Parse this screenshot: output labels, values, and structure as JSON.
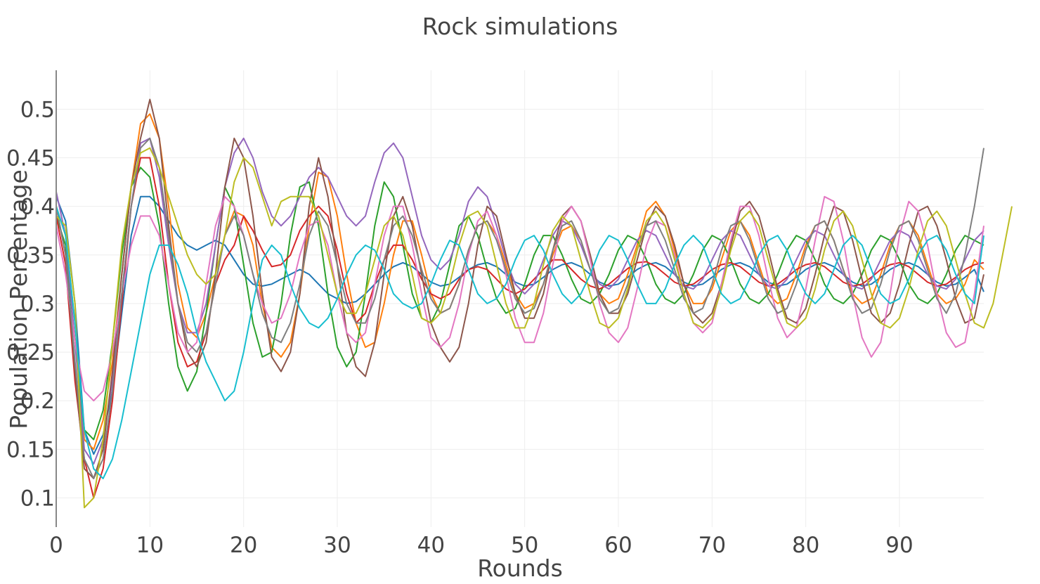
{
  "chart_data": {
    "type": "line",
    "title": "Rock simulations",
    "xlabel": "Rounds",
    "ylabel": "Population Percentage",
    "xlim": [
      0,
      99
    ],
    "ylim": [
      0.07,
      0.54
    ],
    "xticks": [
      0,
      10,
      20,
      30,
      40,
      50,
      60,
      70,
      80,
      90
    ],
    "xtick_labels": [
      "0",
      "10",
      "20",
      "30",
      "40",
      "50",
      "60",
      "70",
      "80",
      "90"
    ],
    "yticks": [
      0.1,
      0.15,
      0.2,
      0.25,
      0.3,
      0.35,
      0.4,
      0.45,
      0.5
    ],
    "ytick_labels": [
      "0.1",
      "0.15",
      "0.2",
      "0.25",
      "0.3",
      "0.35",
      "0.4",
      "0.45",
      "0.5"
    ],
    "grid": true,
    "legend": "none",
    "series": [
      {
        "color": "#1f77b4",
        "values": [
          0.41,
          0.385,
          0.3,
          0.17,
          0.145,
          0.165,
          0.21,
          0.29,
          0.37,
          0.41,
          0.41,
          0.4,
          0.385,
          0.37,
          0.36,
          0.355,
          0.36,
          0.365,
          0.36,
          0.345,
          0.33,
          0.32,
          0.318,
          0.32,
          0.325,
          0.33,
          0.335,
          0.33,
          0.32,
          0.31,
          0.305,
          0.3,
          0.302,
          0.31,
          0.32,
          0.33,
          0.338,
          0.342,
          0.338,
          0.33,
          0.322,
          0.318,
          0.32,
          0.327,
          0.335,
          0.34,
          0.342,
          0.338,
          0.33,
          0.322,
          0.318,
          0.32,
          0.327,
          0.335,
          0.34,
          0.342,
          0.338,
          0.33,
          0.322,
          0.318,
          0.32,
          0.327,
          0.335,
          0.34,
          0.342,
          0.338,
          0.33,
          0.322,
          0.318,
          0.32,
          0.327,
          0.335,
          0.34,
          0.342,
          0.338,
          0.33,
          0.322,
          0.318,
          0.32,
          0.327,
          0.335,
          0.34,
          0.342,
          0.338,
          0.33,
          0.322,
          0.318,
          0.32,
          0.327,
          0.335,
          0.34,
          0.342,
          0.338,
          0.33,
          0.322,
          0.318,
          0.32,
          0.327,
          0.335,
          0.312
        ]
      },
      {
        "color": "#ff7f0e",
        "values": [
          0.4,
          0.37,
          0.28,
          0.16,
          0.15,
          0.18,
          0.24,
          0.33,
          0.42,
          0.485,
          0.495,
          0.47,
          0.4,
          0.32,
          0.275,
          0.265,
          0.29,
          0.33,
          0.37,
          0.395,
          0.39,
          0.36,
          0.3,
          0.255,
          0.245,
          0.26,
          0.31,
          0.38,
          0.435,
          0.43,
          0.39,
          0.33,
          0.28,
          0.255,
          0.26,
          0.3,
          0.35,
          0.385,
          0.385,
          0.35,
          0.31,
          0.29,
          0.295,
          0.32,
          0.355,
          0.38,
          0.385,
          0.37,
          0.34,
          0.31,
          0.295,
          0.3,
          0.32,
          0.35,
          0.375,
          0.38,
          0.365,
          0.335,
          0.31,
          0.3,
          0.305,
          0.33,
          0.36,
          0.395,
          0.405,
          0.39,
          0.355,
          0.32,
          0.3,
          0.3,
          0.315,
          0.345,
          0.375,
          0.385,
          0.37,
          0.34,
          0.31,
          0.3,
          0.305,
          0.33,
          0.36,
          0.38,
          0.385,
          0.365,
          0.335,
          0.31,
          0.3,
          0.305,
          0.33,
          0.36,
          0.38,
          0.385,
          0.37,
          0.34,
          0.31,
          0.3,
          0.305,
          0.32,
          0.345,
          0.335
        ]
      },
      {
        "color": "#2ca02c",
        "values": [
          0.39,
          0.36,
          0.26,
          0.17,
          0.16,
          0.19,
          0.26,
          0.35,
          0.42,
          0.44,
          0.43,
          0.38,
          0.3,
          0.235,
          0.21,
          0.23,
          0.29,
          0.36,
          0.42,
          0.4,
          0.34,
          0.28,
          0.245,
          0.25,
          0.3,
          0.37,
          0.42,
          0.425,
          0.38,
          0.31,
          0.255,
          0.235,
          0.25,
          0.31,
          0.38,
          0.425,
          0.41,
          0.36,
          0.31,
          0.285,
          0.28,
          0.3,
          0.34,
          0.38,
          0.39,
          0.37,
          0.335,
          0.305,
          0.29,
          0.295,
          0.32,
          0.35,
          0.37,
          0.37,
          0.35,
          0.325,
          0.305,
          0.3,
          0.31,
          0.33,
          0.355,
          0.37,
          0.365,
          0.345,
          0.32,
          0.305,
          0.3,
          0.31,
          0.33,
          0.355,
          0.37,
          0.365,
          0.345,
          0.32,
          0.305,
          0.3,
          0.31,
          0.33,
          0.355,
          0.37,
          0.365,
          0.345,
          0.32,
          0.305,
          0.3,
          0.31,
          0.33,
          0.355,
          0.37,
          0.365,
          0.345,
          0.32,
          0.305,
          0.3,
          0.31,
          0.33,
          0.355,
          0.37,
          0.365,
          0.36
        ]
      },
      {
        "color": "#d62728",
        "values": [
          0.39,
          0.34,
          0.22,
          0.14,
          0.1,
          0.13,
          0.2,
          0.3,
          0.4,
          0.45,
          0.45,
          0.4,
          0.32,
          0.26,
          0.235,
          0.24,
          0.27,
          0.32,
          0.345,
          0.36,
          0.39,
          0.375,
          0.355,
          0.338,
          0.34,
          0.35,
          0.375,
          0.39,
          0.4,
          0.39,
          0.355,
          0.31,
          0.28,
          0.29,
          0.32,
          0.345,
          0.36,
          0.36,
          0.345,
          0.325,
          0.31,
          0.305,
          0.31,
          0.325,
          0.335,
          0.338,
          0.335,
          0.325,
          0.315,
          0.31,
          0.315,
          0.325,
          0.335,
          0.345,
          0.345,
          0.335,
          0.325,
          0.318,
          0.315,
          0.32,
          0.328,
          0.336,
          0.342,
          0.343,
          0.338,
          0.33,
          0.322,
          0.318,
          0.32,
          0.327,
          0.335,
          0.34,
          0.342,
          0.338,
          0.33,
          0.322,
          0.318,
          0.32,
          0.327,
          0.335,
          0.34,
          0.342,
          0.338,
          0.33,
          0.322,
          0.318,
          0.32,
          0.327,
          0.335,
          0.34,
          0.342,
          0.338,
          0.33,
          0.322,
          0.318,
          0.32,
          0.327,
          0.335,
          0.34,
          0.342
        ]
      },
      {
        "color": "#9467bd",
        "values": [
          0.415,
          0.37,
          0.26,
          0.15,
          0.135,
          0.16,
          0.22,
          0.31,
          0.4,
          0.465,
          0.47,
          0.43,
          0.36,
          0.3,
          0.27,
          0.27,
          0.3,
          0.36,
          0.42,
          0.455,
          0.47,
          0.45,
          0.415,
          0.39,
          0.38,
          0.39,
          0.41,
          0.43,
          0.44,
          0.43,
          0.41,
          0.39,
          0.38,
          0.39,
          0.425,
          0.455,
          0.465,
          0.45,
          0.41,
          0.37,
          0.345,
          0.335,
          0.345,
          0.37,
          0.405,
          0.42,
          0.41,
          0.38,
          0.345,
          0.32,
          0.31,
          0.32,
          0.345,
          0.37,
          0.385,
          0.38,
          0.36,
          0.335,
          0.32,
          0.315,
          0.325,
          0.345,
          0.365,
          0.375,
          0.37,
          0.35,
          0.33,
          0.318,
          0.315,
          0.325,
          0.345,
          0.365,
          0.375,
          0.37,
          0.35,
          0.33,
          0.318,
          0.315,
          0.325,
          0.345,
          0.365,
          0.375,
          0.37,
          0.35,
          0.33,
          0.318,
          0.315,
          0.325,
          0.345,
          0.365,
          0.375,
          0.37,
          0.35,
          0.33,
          0.318,
          0.315,
          0.325,
          0.345,
          0.365,
          0.375
        ]
      },
      {
        "color": "#8c564b",
        "values": [
          0.4,
          0.35,
          0.23,
          0.13,
          0.12,
          0.15,
          0.23,
          0.33,
          0.42,
          0.47,
          0.51,
          0.47,
          0.38,
          0.3,
          0.25,
          0.235,
          0.26,
          0.33,
          0.42,
          0.47,
          0.45,
          0.39,
          0.31,
          0.245,
          0.23,
          0.25,
          0.31,
          0.4,
          0.45,
          0.41,
          0.34,
          0.27,
          0.235,
          0.225,
          0.26,
          0.33,
          0.39,
          0.41,
          0.38,
          0.33,
          0.28,
          0.255,
          0.24,
          0.255,
          0.3,
          0.36,
          0.4,
          0.39,
          0.35,
          0.31,
          0.285,
          0.285,
          0.31,
          0.355,
          0.39,
          0.4,
          0.385,
          0.35,
          0.31,
          0.29,
          0.29,
          0.31,
          0.345,
          0.38,
          0.4,
          0.39,
          0.36,
          0.32,
          0.29,
          0.28,
          0.29,
          0.32,
          0.36,
          0.395,
          0.405,
          0.39,
          0.355,
          0.315,
          0.285,
          0.28,
          0.295,
          0.33,
          0.37,
          0.4,
          0.395,
          0.365,
          0.325,
          0.29,
          0.28,
          0.29,
          0.32,
          0.36,
          0.395,
          0.4,
          0.38,
          0.345,
          0.305,
          0.28,
          0.285,
          0.33
        ]
      },
      {
        "color": "#e377c2",
        "values": [
          0.38,
          0.33,
          0.26,
          0.21,
          0.2,
          0.21,
          0.25,
          0.31,
          0.36,
          0.39,
          0.39,
          0.37,
          0.32,
          0.27,
          0.25,
          0.26,
          0.32,
          0.38,
          0.41,
          0.4,
          0.37,
          0.33,
          0.3,
          0.28,
          0.285,
          0.31,
          0.35,
          0.38,
          0.385,
          0.36,
          0.31,
          0.27,
          0.26,
          0.27,
          0.32,
          0.37,
          0.4,
          0.4,
          0.36,
          0.31,
          0.265,
          0.255,
          0.265,
          0.3,
          0.35,
          0.385,
          0.395,
          0.37,
          0.33,
          0.285,
          0.26,
          0.26,
          0.29,
          0.34,
          0.385,
          0.4,
          0.385,
          0.345,
          0.3,
          0.27,
          0.26,
          0.275,
          0.315,
          0.36,
          0.385,
          0.38,
          0.35,
          0.31,
          0.28,
          0.27,
          0.28,
          0.32,
          0.365,
          0.4,
          0.4,
          0.37,
          0.325,
          0.285,
          0.265,
          0.275,
          0.315,
          0.365,
          0.41,
          0.405,
          0.365,
          0.31,
          0.265,
          0.245,
          0.26,
          0.31,
          0.37,
          0.405,
          0.395,
          0.36,
          0.31,
          0.27,
          0.255,
          0.26,
          0.31,
          0.38
        ]
      },
      {
        "color": "#7f7f7f",
        "values": [
          0.4,
          0.35,
          0.24,
          0.14,
          0.12,
          0.14,
          0.21,
          0.31,
          0.4,
          0.46,
          0.47,
          0.44,
          0.37,
          0.3,
          0.26,
          0.25,
          0.27,
          0.32,
          0.37,
          0.39,
          0.37,
          0.33,
          0.29,
          0.265,
          0.26,
          0.28,
          0.32,
          0.37,
          0.395,
          0.38,
          0.34,
          0.3,
          0.28,
          0.28,
          0.305,
          0.345,
          0.38,
          0.39,
          0.37,
          0.335,
          0.305,
          0.29,
          0.295,
          0.32,
          0.355,
          0.38,
          0.385,
          0.365,
          0.335,
          0.305,
          0.29,
          0.295,
          0.32,
          0.355,
          0.38,
          0.385,
          0.365,
          0.335,
          0.305,
          0.29,
          0.295,
          0.32,
          0.355,
          0.38,
          0.385,
          0.365,
          0.335,
          0.305,
          0.29,
          0.295,
          0.32,
          0.355,
          0.38,
          0.385,
          0.365,
          0.335,
          0.305,
          0.29,
          0.295,
          0.32,
          0.355,
          0.38,
          0.385,
          0.365,
          0.335,
          0.305,
          0.29,
          0.295,
          0.32,
          0.355,
          0.38,
          0.385,
          0.365,
          0.335,
          0.305,
          0.29,
          0.31,
          0.35,
          0.4,
          0.46
        ]
      },
      {
        "color": "#bcbd22",
        "values": [
          0.39,
          0.38,
          0.3,
          0.09,
          0.1,
          0.16,
          0.26,
          0.36,
          0.42,
          0.455,
          0.46,
          0.44,
          0.41,
          0.38,
          0.35,
          0.33,
          0.32,
          0.33,
          0.37,
          0.425,
          0.45,
          0.44,
          0.41,
          0.38,
          0.405,
          0.41,
          0.41,
          0.41,
          0.39,
          0.35,
          0.31,
          0.29,
          0.29,
          0.31,
          0.345,
          0.38,
          0.39,
          0.37,
          0.33,
          0.285,
          0.28,
          0.29,
          0.32,
          0.36,
          0.39,
          0.395,
          0.38,
          0.34,
          0.3,
          0.275,
          0.275,
          0.3,
          0.34,
          0.375,
          0.39,
          0.38,
          0.345,
          0.31,
          0.28,
          0.275,
          0.285,
          0.315,
          0.355,
          0.385,
          0.395,
          0.38,
          0.345,
          0.31,
          0.28,
          0.275,
          0.285,
          0.315,
          0.355,
          0.385,
          0.395,
          0.38,
          0.345,
          0.31,
          0.28,
          0.275,
          0.285,
          0.315,
          0.355,
          0.385,
          0.395,
          0.38,
          0.345,
          0.31,
          0.28,
          0.275,
          0.285,
          0.315,
          0.355,
          0.385,
          0.395,
          0.38,
          0.345,
          0.31,
          0.28,
          0.275,
          0.3,
          0.35,
          0.4
        ]
      },
      {
        "color": "#17becf",
        "values": [
          0.4,
          0.37,
          0.28,
          0.17,
          0.13,
          0.12,
          0.14,
          0.18,
          0.23,
          0.28,
          0.33,
          0.36,
          0.36,
          0.34,
          0.31,
          0.27,
          0.24,
          0.22,
          0.2,
          0.21,
          0.25,
          0.3,
          0.345,
          0.36,
          0.35,
          0.32,
          0.295,
          0.28,
          0.275,
          0.285,
          0.305,
          0.33,
          0.35,
          0.36,
          0.355,
          0.335,
          0.31,
          0.3,
          0.295,
          0.3,
          0.32,
          0.345,
          0.365,
          0.36,
          0.335,
          0.31,
          0.3,
          0.305,
          0.32,
          0.345,
          0.365,
          0.37,
          0.355,
          0.33,
          0.31,
          0.3,
          0.31,
          0.33,
          0.355,
          0.37,
          0.365,
          0.345,
          0.32,
          0.3,
          0.3,
          0.315,
          0.34,
          0.36,
          0.37,
          0.36,
          0.335,
          0.31,
          0.3,
          0.305,
          0.325,
          0.35,
          0.365,
          0.37,
          0.355,
          0.33,
          0.31,
          0.3,
          0.31,
          0.335,
          0.36,
          0.37,
          0.36,
          0.335,
          0.31,
          0.3,
          0.305,
          0.325,
          0.35,
          0.365,
          0.37,
          0.355,
          0.33,
          0.31,
          0.3,
          0.37
        ]
      }
    ]
  }
}
